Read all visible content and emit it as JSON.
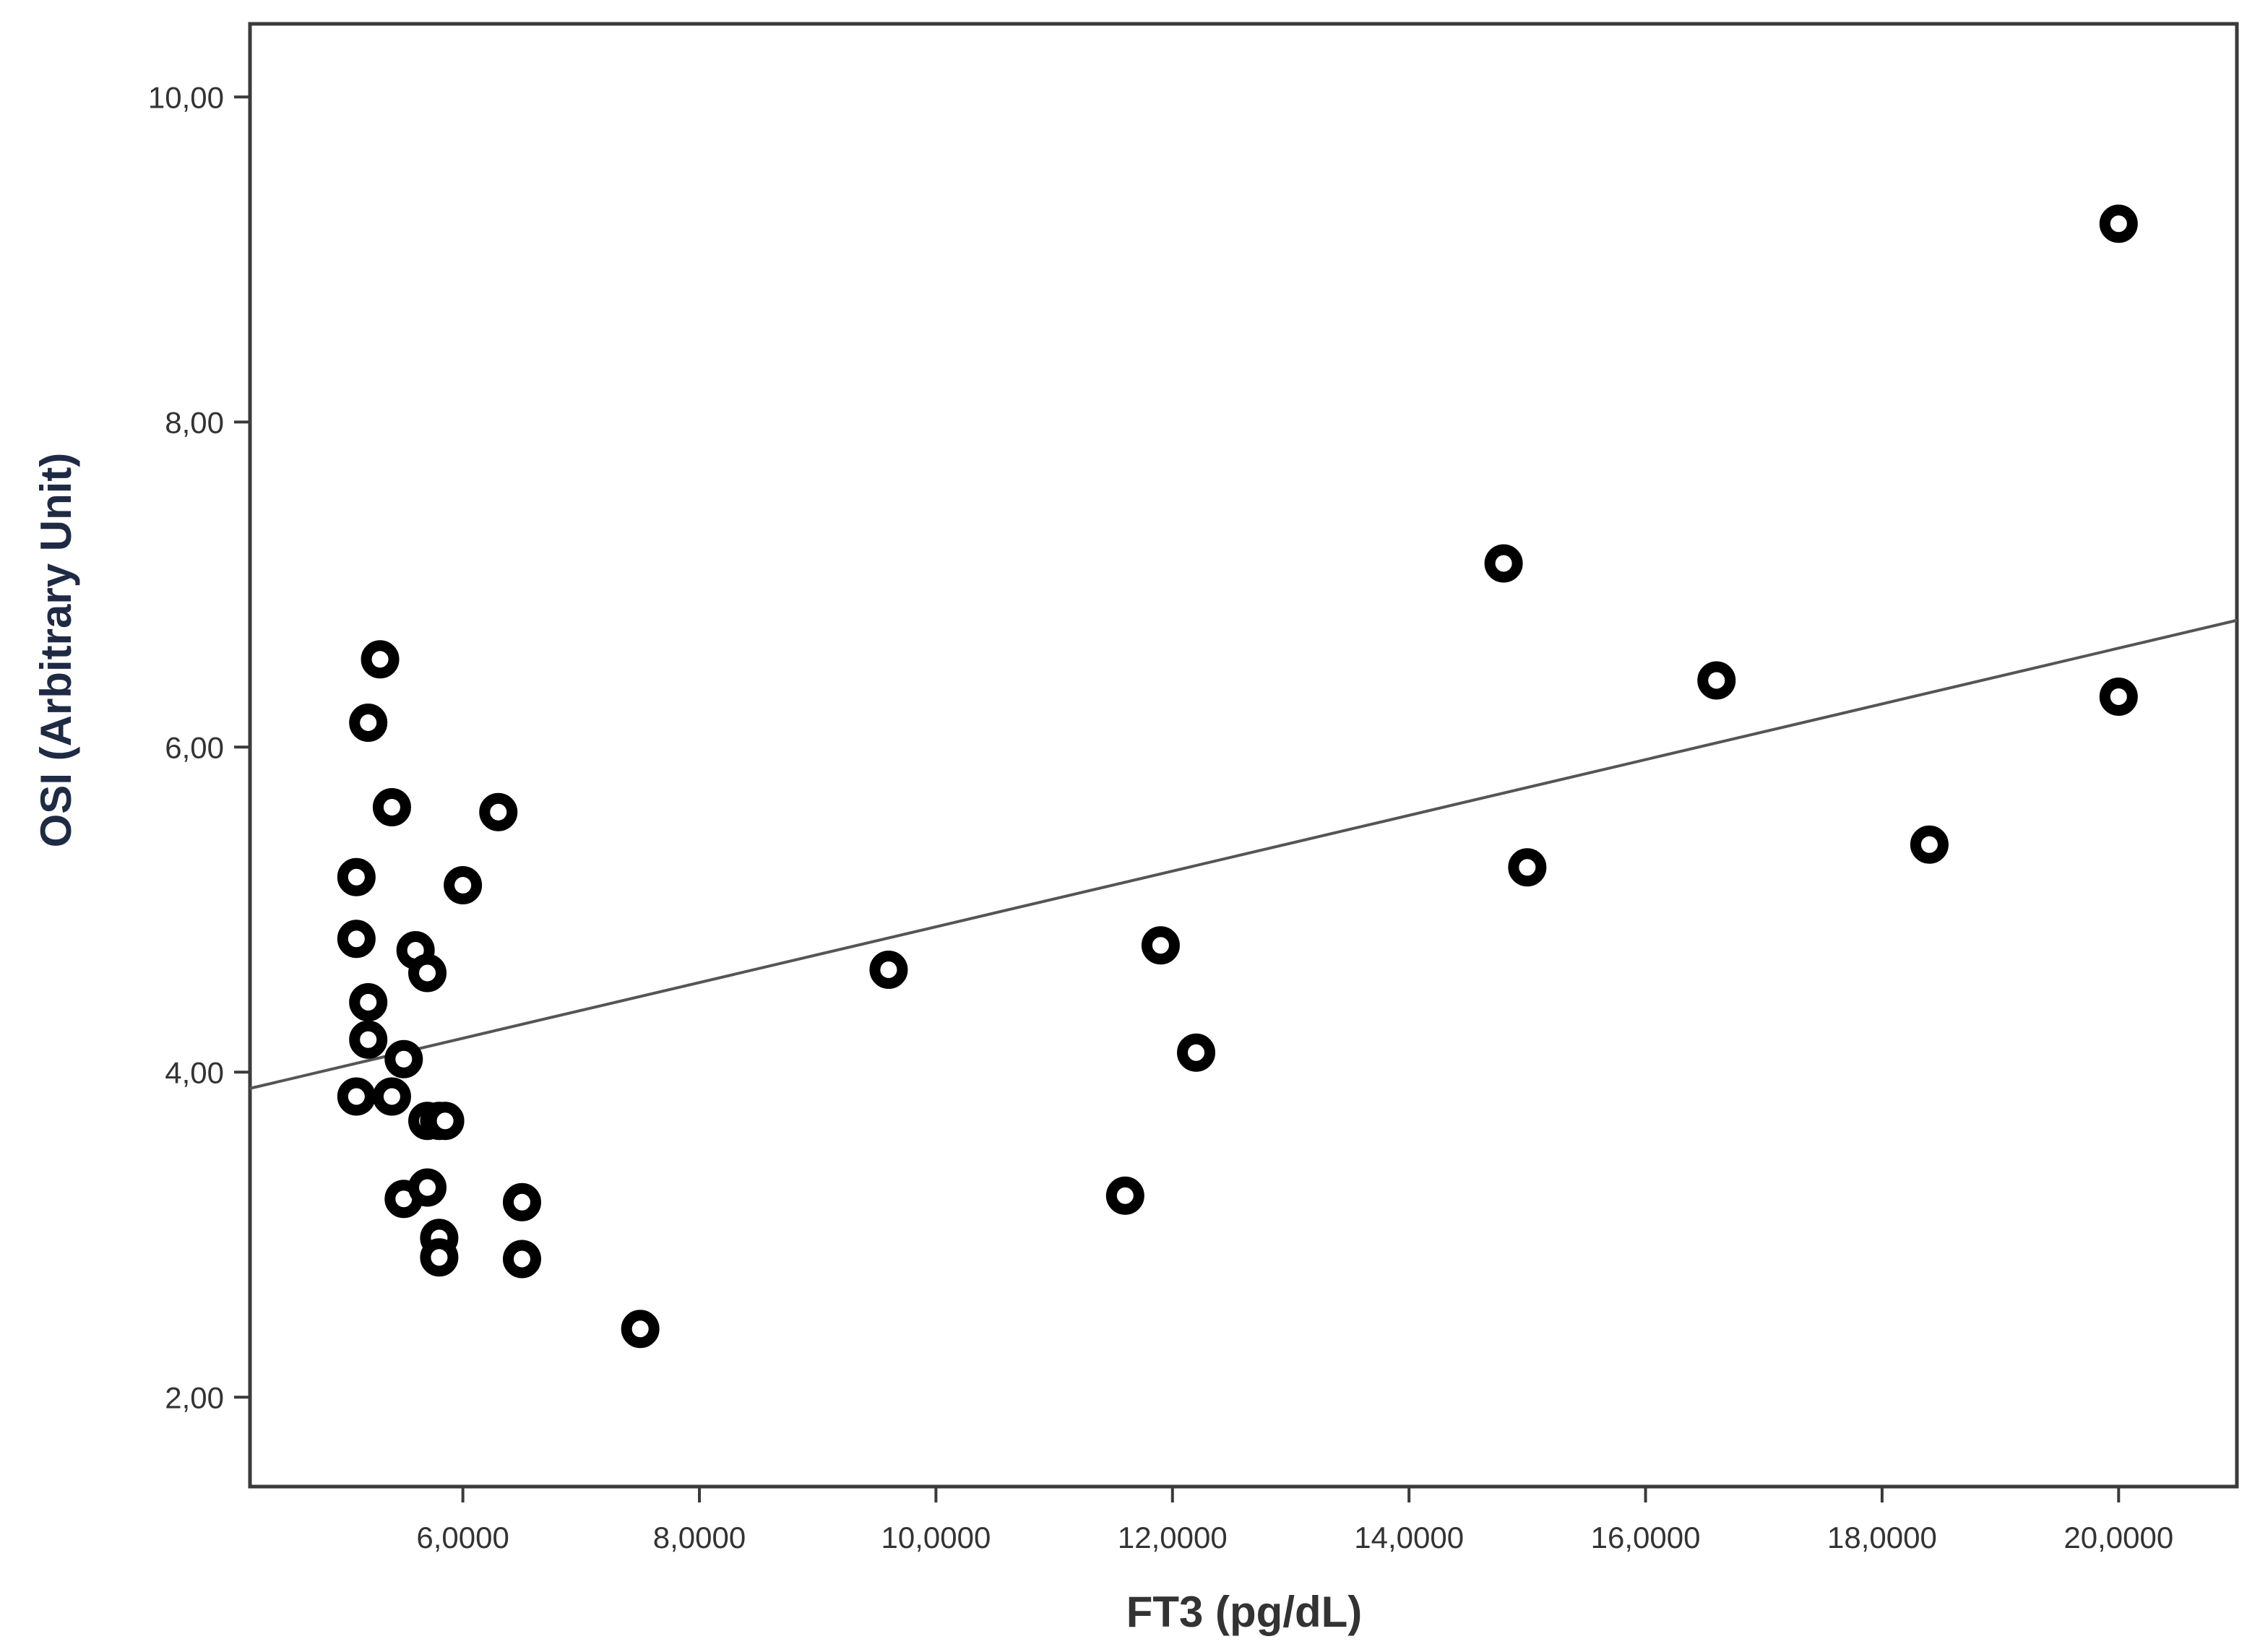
{
  "chart_data": {
    "type": "scatter",
    "xlabel": "FT3 (pg/dL)",
    "ylabel": "OSI (Arbitrary Unit)",
    "xlim": [
      4.2,
      21.0
    ],
    "ylim": [
      1.45,
      10.45
    ],
    "x_ticks": [
      6,
      8,
      10,
      12,
      14,
      16,
      18,
      20
    ],
    "x_tick_labels": [
      "6,0000",
      "8,0000",
      "10,0000",
      "12,0000",
      "14,0000",
      "16,0000",
      "18,0000",
      "20,0000"
    ],
    "y_ticks": [
      2,
      4,
      6,
      8,
      10
    ],
    "y_tick_labels": [
      "2,00",
      "4,00",
      "6,00",
      "8,00",
      "10,00"
    ],
    "grid": false,
    "points": [
      {
        "x": 5.1,
        "y": 5.2
      },
      {
        "x": 5.1,
        "y": 4.82
      },
      {
        "x": 5.1,
        "y": 3.85
      },
      {
        "x": 5.2,
        "y": 6.15
      },
      {
        "x": 5.2,
        "y": 4.43
      },
      {
        "x": 5.2,
        "y": 4.2
      },
      {
        "x": 5.3,
        "y": 6.54
      },
      {
        "x": 5.4,
        "y": 5.63
      },
      {
        "x": 5.4,
        "y": 3.85
      },
      {
        "x": 5.5,
        "y": 4.08
      },
      {
        "x": 5.5,
        "y": 3.22
      },
      {
        "x": 5.6,
        "y": 4.75
      },
      {
        "x": 5.7,
        "y": 4.61
      },
      {
        "x": 5.7,
        "y": 3.7
      },
      {
        "x": 5.7,
        "y": 3.29
      },
      {
        "x": 5.8,
        "y": 3.7
      },
      {
        "x": 5.8,
        "y": 2.98
      },
      {
        "x": 5.8,
        "y": 2.86
      },
      {
        "x": 5.85,
        "y": 3.7
      },
      {
        "x": 6.0,
        "y": 5.15
      },
      {
        "x": 6.3,
        "y": 5.6
      },
      {
        "x": 6.5,
        "y": 3.2
      },
      {
        "x": 6.5,
        "y": 2.85
      },
      {
        "x": 7.5,
        "y": 2.42
      },
      {
        "x": 9.6,
        "y": 4.63
      },
      {
        "x": 11.6,
        "y": 3.24
      },
      {
        "x": 11.9,
        "y": 4.78
      },
      {
        "x": 12.2,
        "y": 4.12
      },
      {
        "x": 14.8,
        "y": 7.13
      },
      {
        "x": 15.0,
        "y": 5.26
      },
      {
        "x": 16.6,
        "y": 6.41
      },
      {
        "x": 18.4,
        "y": 5.4
      },
      {
        "x": 20.0,
        "y": 9.22
      },
      {
        "x": 20.0,
        "y": 6.31
      }
    ],
    "fit_line": {
      "x0": 4.2,
      "y0": 3.9,
      "x1": 21.0,
      "y1": 6.78
    },
    "colors": {
      "ylabel": "#1f2a44",
      "xlabel": "#333333",
      "axis": "#3a3a3a",
      "fit": "#555555",
      "marker": "#000000"
    }
  }
}
